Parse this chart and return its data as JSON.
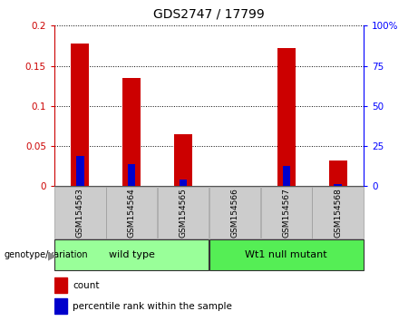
{
  "title": "GDS2747 / 17799",
  "categories": [
    "GSM154563",
    "GSM154564",
    "GSM154565",
    "GSM154566",
    "GSM154567",
    "GSM154568"
  ],
  "red_values": [
    0.178,
    0.135,
    0.065,
    0.0,
    0.172,
    0.032
  ],
  "blue_values": [
    0.038,
    0.027,
    0.008,
    0.0,
    0.025,
    0.003
  ],
  "ylim_left": [
    0,
    0.2
  ],
  "ylim_right": [
    0,
    100
  ],
  "yticks_left": [
    0,
    0.05,
    0.1,
    0.15,
    0.2
  ],
  "yticks_right": [
    0,
    25,
    50,
    75,
    100
  ],
  "ytick_labels_left": [
    "0",
    "0.05",
    "0.1",
    "0.15",
    "0.2"
  ],
  "ytick_labels_right": [
    "0",
    "25",
    "50",
    "75",
    "100%"
  ],
  "red_color": "#cc0000",
  "blue_color": "#0000cc",
  "red_bar_width": 0.35,
  "blue_bar_width": 0.15,
  "groups": [
    {
      "label": "wild type",
      "color": "#99ff99"
    },
    {
      "label": "Wt1 null mutant",
      "color": "#55ee55"
    }
  ],
  "group_label": "genotype/variation",
  "legend_count": "count",
  "legend_percentile": "percentile rank within the sample",
  "xticklabel_bg": "#cccccc",
  "xticklabel_border": "#aaaaaa"
}
